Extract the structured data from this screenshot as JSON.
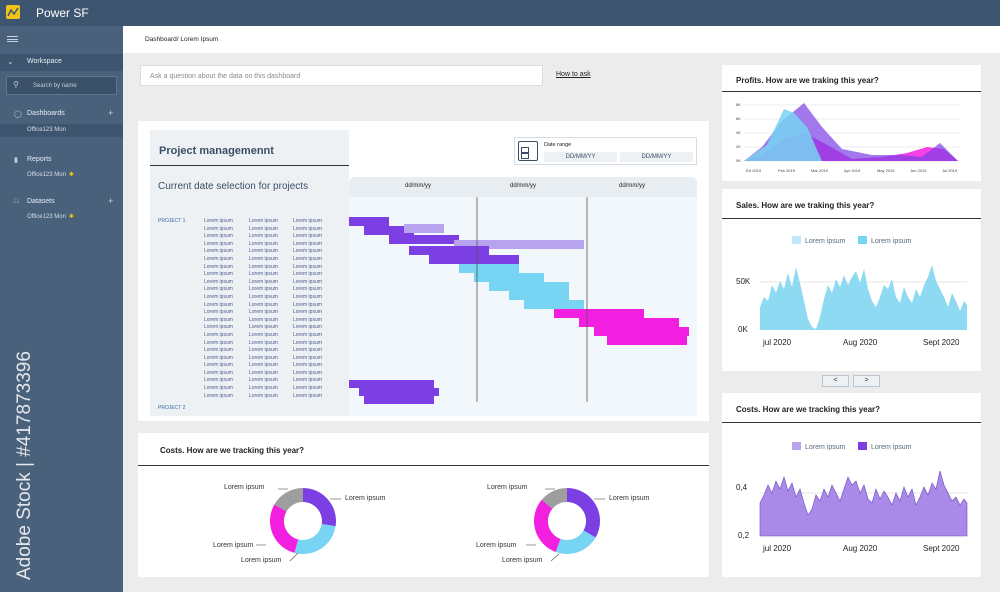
{
  "app": {
    "title": "Power SF"
  },
  "sidebar": {
    "workspace": "Workspace",
    "search_placeholder": "Search by name",
    "sections": [
      {
        "label": "Dashboards",
        "sub": "Office123 Mon"
      },
      {
        "label": "Reports",
        "sub": "Office123 Mon"
      },
      {
        "label": "Datasets",
        "sub": "Office123 Mon"
      }
    ],
    "stock_text": "Adobe Stock | #417873396"
  },
  "breadcrumb": "Dashboard/ Lorem Ipsum",
  "ask": {
    "placeholder": "Ask a question about the data on this dashboard",
    "link": "How to ask"
  },
  "project": {
    "title": "Project managemennt",
    "subtitle": "Current date selection for projects",
    "date_range_label": "Date range",
    "date_from": "DD/MM/YY",
    "date_to": "DD/MM/YY",
    "column_dates": [
      "dd/mm/yy",
      "dd/mm/yy",
      "dd/mm/yy"
    ],
    "project_labels": [
      "PROJECT 1",
      "PROJECT 2"
    ],
    "lorem": "Lorem ipsum"
  },
  "costs_bottom": {
    "title": "Costs. How are we tracking this year?",
    "lorem": "Lorem ipsum"
  },
  "profits": {
    "title": "Profits. How are we traking this year?",
    "y_ticks": [
      "8K",
      "6K",
      "4K",
      "2K",
      "0K"
    ],
    "x_ticks": [
      "Ert 2019",
      "Feb 2019",
      "Mar 2019",
      "Apr 2019",
      "May 2019",
      "Jun 2019",
      "Jul 2019"
    ]
  },
  "sales": {
    "title": "Sales. How are we traking this year?",
    "legend": [
      "Lorem ipsum",
      "Lorem ipsum"
    ],
    "y_ticks": [
      "50K",
      "0K"
    ],
    "x_ticks": [
      "jul 2020",
      "Aug 2020",
      "Sept 2020"
    ],
    "prev": "<",
    "next": ">"
  },
  "costs_right": {
    "title": "Costs. How are we tracking this year?",
    "legend": [
      "Lorem ipsum",
      "Lorem ipsum"
    ],
    "y_ticks": [
      "0,4",
      "0,2"
    ],
    "x_ticks": [
      "jul 2020",
      "Aug 2020",
      "Sept 2020"
    ]
  },
  "colors": {
    "topbar": "#3e5570",
    "sidebar": "#4a617c",
    "purple": "#7b3fe4",
    "lavender": "#b8a3ef",
    "magenta": "#f21ee0",
    "sky": "#77d4f2",
    "grey": "#9e9e9e"
  }
}
